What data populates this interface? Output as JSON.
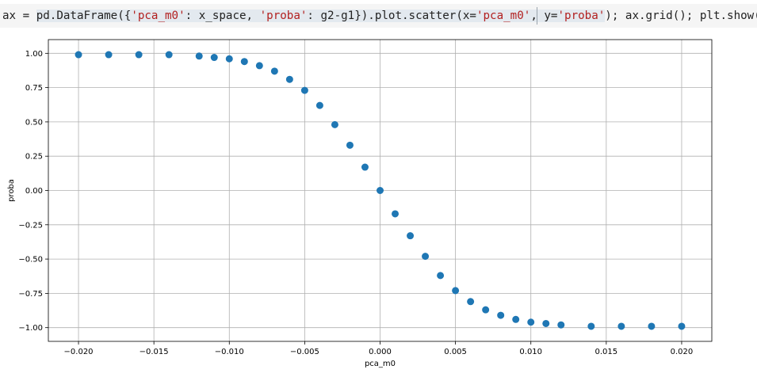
{
  "code": {
    "segments": [
      {
        "text": "ax = ",
        "cls": ""
      },
      {
        "text": "pd.DataFrame({",
        "cls": "hl"
      },
      {
        "text": "'pca_m0'",
        "cls": "hl str"
      },
      {
        "text": ": x_space, ",
        "cls": "hl"
      },
      {
        "text": "'proba'",
        "cls": "hl str"
      },
      {
        "text": ": g2-g1}).plot.scatter(x=",
        "cls": "hl"
      },
      {
        "text": "'pca_m0'",
        "cls": "hl str"
      },
      {
        "text": ", y=",
        "cls": "hl"
      },
      {
        "text": "'proba'",
        "cls": "hl str"
      },
      {
        "text": "); ax.grid(); plt.show()",
        "cls": ""
      }
    ]
  },
  "colors": {
    "series": "#1f77b4",
    "grid": "#b0b0b0"
  },
  "chart_data": {
    "type": "scatter",
    "xlabel": "pca_m0",
    "ylabel": "proba",
    "xlim": [
      -0.022,
      0.022
    ],
    "ylim": [
      -1.1,
      1.1
    ],
    "xticks": [
      "−0.020",
      "−0.015",
      "−0.010",
      "−0.005",
      "0.000",
      "0.005",
      "0.010",
      "0.015",
      "0.020"
    ],
    "xtick_values": [
      -0.02,
      -0.015,
      -0.01,
      -0.005,
      0.0,
      0.005,
      0.01,
      0.015,
      0.02
    ],
    "yticks": [
      "1.00",
      "0.75",
      "0.50",
      "0.25",
      "0.00",
      "−0.25",
      "−0.50",
      "−0.75",
      "−1.00"
    ],
    "ytick_values": [
      1.0,
      0.75,
      0.5,
      0.25,
      0.0,
      -0.25,
      -0.5,
      -0.75,
      -1.0
    ],
    "grid": true,
    "series": [
      {
        "x": [
          -0.02,
          -0.018,
          -0.016,
          -0.014,
          -0.012,
          -0.011,
          -0.01,
          -0.009,
          -0.008,
          -0.007,
          -0.006,
          -0.005,
          -0.004,
          -0.003,
          -0.002,
          -0.001,
          0.0,
          0.001,
          0.002,
          0.003,
          0.004,
          0.005,
          0.006,
          0.007,
          0.008,
          0.009,
          0.01,
          0.011,
          0.012,
          0.014,
          0.016,
          0.018,
          0.02
        ],
        "y": [
          0.99,
          0.99,
          0.99,
          0.99,
          0.98,
          0.97,
          0.96,
          0.94,
          0.91,
          0.87,
          0.81,
          0.73,
          0.62,
          0.48,
          0.33,
          0.17,
          0.0,
          -0.17,
          -0.33,
          -0.48,
          -0.62,
          -0.73,
          -0.81,
          -0.87,
          -0.91,
          -0.94,
          -0.96,
          -0.97,
          -0.98,
          -0.99,
          -0.99,
          -0.99,
          -0.99
        ]
      }
    ]
  }
}
